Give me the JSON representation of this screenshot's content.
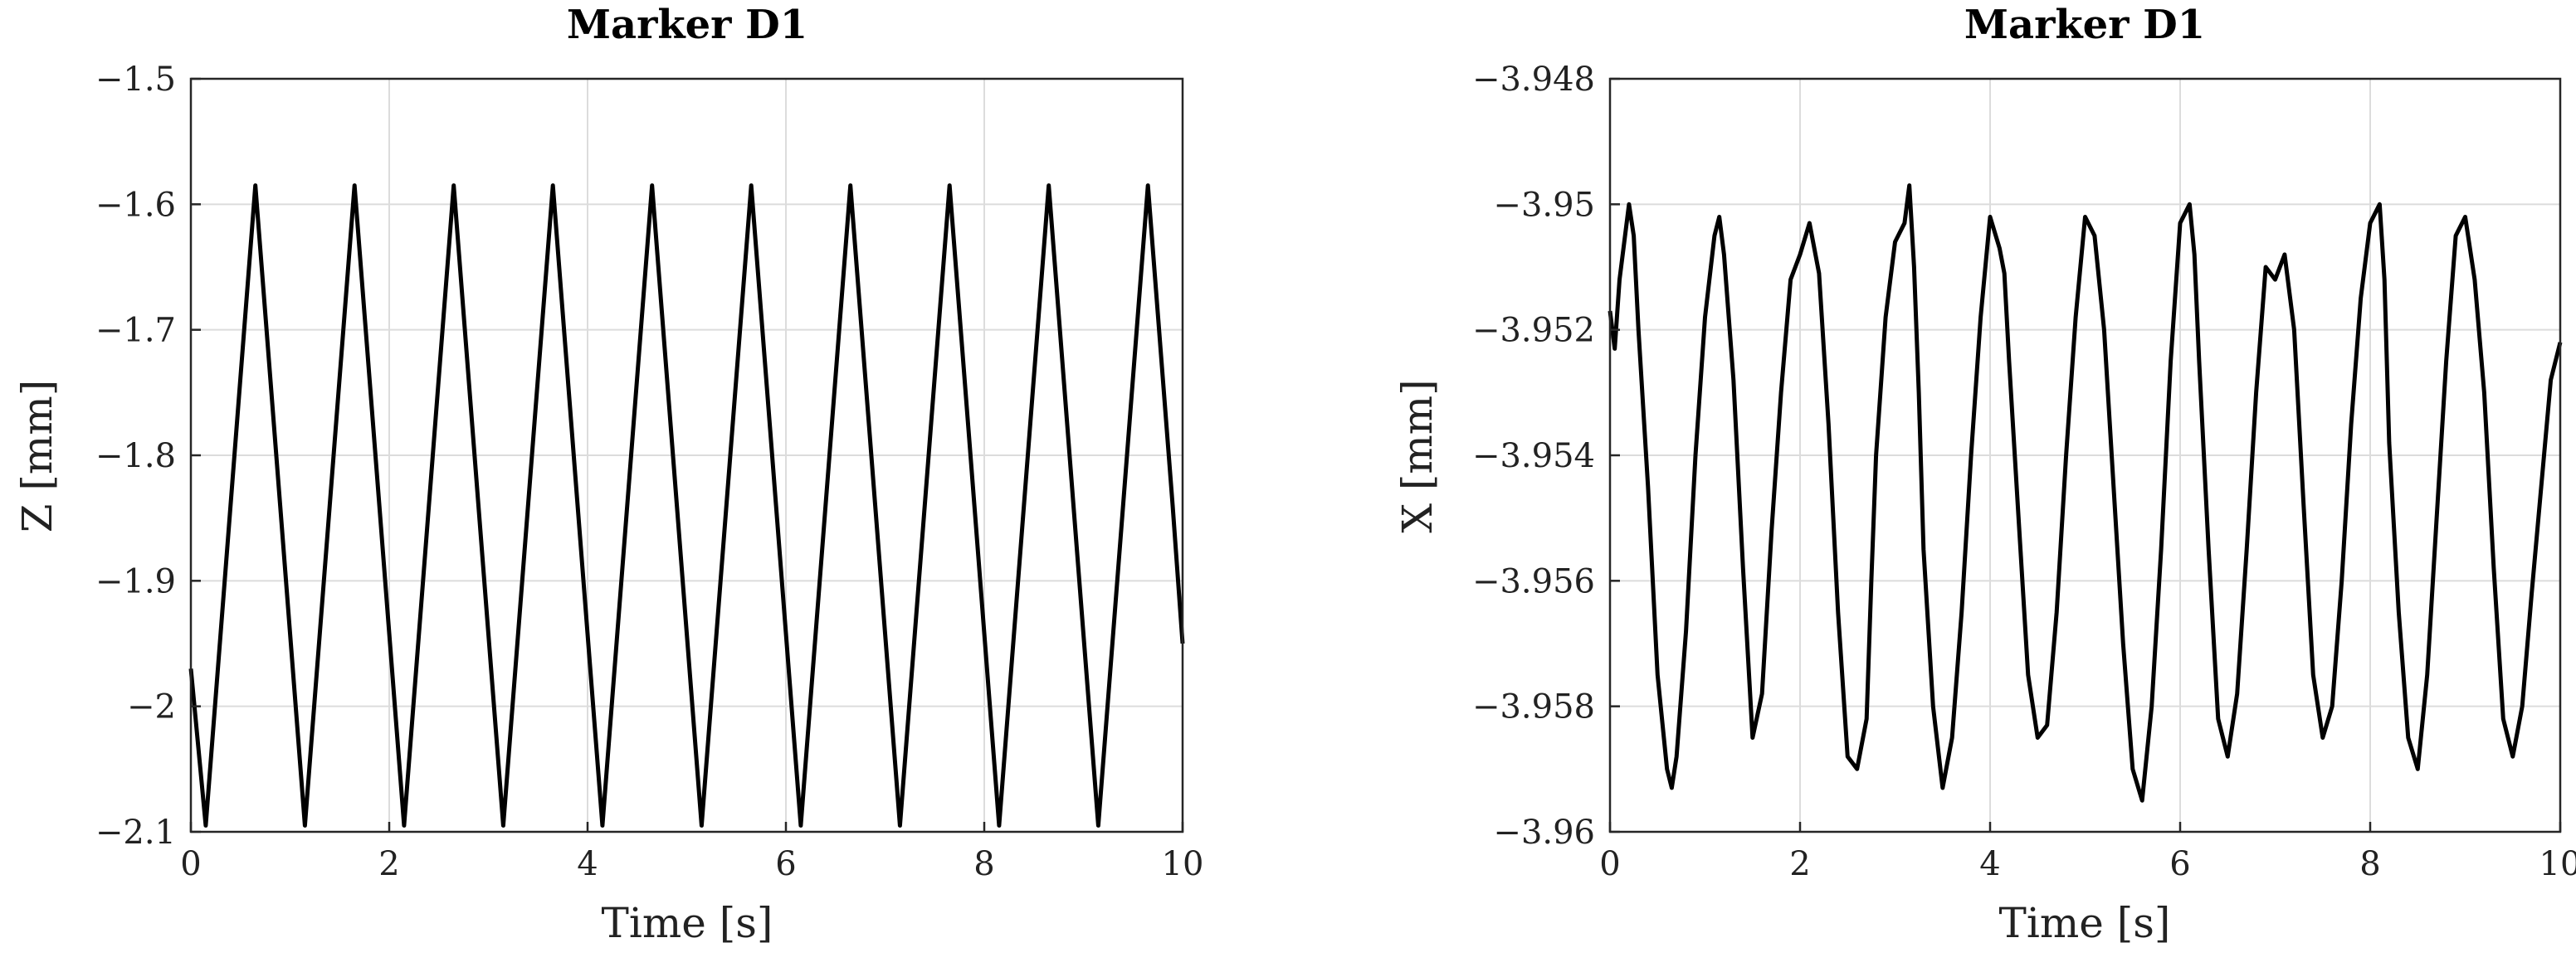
{
  "chart_data": [
    {
      "type": "line",
      "title": "Marker D1",
      "xlabel": "Time [s]",
      "ylabel": "Z [mm]",
      "xlim": [
        0,
        10
      ],
      "ylim": [
        -2.1,
        -1.5
      ],
      "xticks": [
        0,
        2,
        4,
        6,
        8,
        10
      ],
      "xtick_labels": [
        "0",
        "2",
        "4",
        "6",
        "8",
        "10"
      ],
      "yticks": [
        -2.1,
        -2.0,
        -1.9,
        -1.8,
        -1.7,
        -1.6,
        -1.5
      ],
      "ytick_labels": [
        "−2.1",
        "−2",
        "−1.9",
        "−1.8",
        "−1.7",
        "−1.6",
        "−1.5"
      ],
      "grid": true,
      "legend": false,
      "line_color": "#000000",
      "series": [
        {
          "x": [
            0,
            0.15,
            0.4,
            0.65,
            0.9,
            1.15,
            1.4,
            1.65,
            1.9,
            2.15,
            2.4,
            2.65,
            2.9,
            3.15,
            3.4,
            3.65,
            3.9,
            4.15,
            4.4,
            4.65,
            4.9,
            5.15,
            5.4,
            5.65,
            5.9,
            6.15,
            6.4,
            6.65,
            6.9,
            7.15,
            7.4,
            7.65,
            7.9,
            8.15,
            8.4,
            8.65,
            8.9,
            9.15,
            9.4,
            9.65,
            9.9,
            10.0
          ],
          "y": [
            -1.97,
            -2.095,
            -1.84,
            -1.585,
            -1.84,
            -2.095,
            -1.84,
            -1.585,
            -1.84,
            -2.095,
            -1.84,
            -1.585,
            -1.84,
            -2.095,
            -1.84,
            -1.585,
            -1.84,
            -2.095,
            -1.84,
            -1.585,
            -1.84,
            -2.095,
            -1.84,
            -1.585,
            -1.84,
            -2.095,
            -1.84,
            -1.585,
            -1.84,
            -2.095,
            -1.84,
            -1.585,
            -1.84,
            -2.095,
            -1.84,
            -1.585,
            -1.84,
            -2.095,
            -1.84,
            -1.585,
            -1.84,
            -1.95
          ]
        }
      ]
    },
    {
      "type": "line",
      "title": "Marker D1",
      "xlabel": "Time [s]",
      "ylabel": "X [mm]",
      "xlim": [
        0,
        10
      ],
      "ylim": [
        -3.96,
        -3.948
      ],
      "xticks": [
        0,
        2,
        4,
        6,
        8,
        10
      ],
      "xtick_labels": [
        "0",
        "2",
        "4",
        "6",
        "8",
        "10"
      ],
      "yticks": [
        -3.96,
        -3.958,
        -3.956,
        -3.954,
        -3.952,
        -3.95,
        -3.948
      ],
      "ytick_labels": [
        "−3.96",
        "−3.958",
        "−3.956",
        "−3.954",
        "−3.952",
        "−3.95",
        "−3.948"
      ],
      "grid": true,
      "legend": false,
      "line_color": "#000000",
      "series": [
        {
          "x": [
            0,
            0.05,
            0.1,
            0.15,
            0.2,
            0.25,
            0.3,
            0.4,
            0.5,
            0.6,
            0.65,
            0.7,
            0.8,
            0.9,
            1.0,
            1.1,
            1.15,
            1.2,
            1.3,
            1.4,
            1.5,
            1.6,
            1.7,
            1.8,
            1.9,
            2.0,
            2.1,
            2.2,
            2.3,
            2.4,
            2.5,
            2.6,
            2.7,
            2.75,
            2.8,
            2.9,
            3.0,
            3.1,
            3.15,
            3.2,
            3.25,
            3.3,
            3.4,
            3.5,
            3.6,
            3.7,
            3.8,
            3.9,
            4.0,
            4.1,
            4.15,
            4.2,
            4.3,
            4.4,
            4.5,
            4.6,
            4.7,
            4.8,
            4.9,
            5.0,
            5.1,
            5.2,
            5.3,
            5.4,
            5.5,
            5.6,
            5.7,
            5.8,
            5.9,
            6.0,
            6.1,
            6.15,
            6.2,
            6.3,
            6.4,
            6.5,
            6.6,
            6.7,
            6.8,
            6.9,
            7.0,
            7.1,
            7.2,
            7.3,
            7.4,
            7.5,
            7.6,
            7.7,
            7.8,
            7.9,
            8.0,
            8.1,
            8.15,
            8.2,
            8.3,
            8.4,
            8.5,
            8.6,
            8.7,
            8.8,
            8.9,
            9.0,
            9.1,
            9.2,
            9.3,
            9.4,
            9.5,
            9.6,
            9.7,
            9.8,
            9.9,
            10.0
          ],
          "y": [
            -3.9517,
            -3.9523,
            -3.9512,
            -3.9506,
            -3.95,
            -3.9505,
            -3.952,
            -3.9545,
            -3.9575,
            -3.959,
            -3.9593,
            -3.9588,
            -3.9568,
            -3.954,
            -3.9518,
            -3.9505,
            -3.9502,
            -3.9508,
            -3.9528,
            -3.9558,
            -3.9585,
            -3.9578,
            -3.9552,
            -3.953,
            -3.9512,
            -3.9508,
            -3.9503,
            -3.9511,
            -3.9535,
            -3.9565,
            -3.9588,
            -3.959,
            -3.9582,
            -3.956,
            -3.954,
            -3.9518,
            -3.9506,
            -3.9503,
            -3.9497,
            -3.951,
            -3.953,
            -3.9555,
            -3.958,
            -3.9593,
            -3.9585,
            -3.9565,
            -3.954,
            -3.9518,
            -3.9502,
            -3.9507,
            -3.9511,
            -3.9525,
            -3.955,
            -3.9575,
            -3.9585,
            -3.9583,
            -3.9565,
            -3.954,
            -3.9518,
            -3.9502,
            -3.9505,
            -3.952,
            -3.9545,
            -3.957,
            -3.959,
            -3.9595,
            -3.958,
            -3.9555,
            -3.9525,
            -3.9503,
            -3.95,
            -3.9508,
            -3.9525,
            -3.9555,
            -3.9582,
            -3.9588,
            -3.9578,
            -3.9555,
            -3.953,
            -3.951,
            -3.9512,
            -3.9508,
            -3.952,
            -3.9548,
            -3.9575,
            -3.9585,
            -3.958,
            -3.956,
            -3.9535,
            -3.9515,
            -3.9503,
            -3.95,
            -3.9512,
            -3.9538,
            -3.9565,
            -3.9585,
            -3.959,
            -3.9575,
            -3.955,
            -3.9525,
            -3.9505,
            -3.9502,
            -3.9512,
            -3.953,
            -3.9558,
            -3.9582,
            -3.9588,
            -3.958,
            -3.9562,
            -3.9545,
            -3.9528,
            -3.9522
          ]
        }
      ]
    }
  ]
}
